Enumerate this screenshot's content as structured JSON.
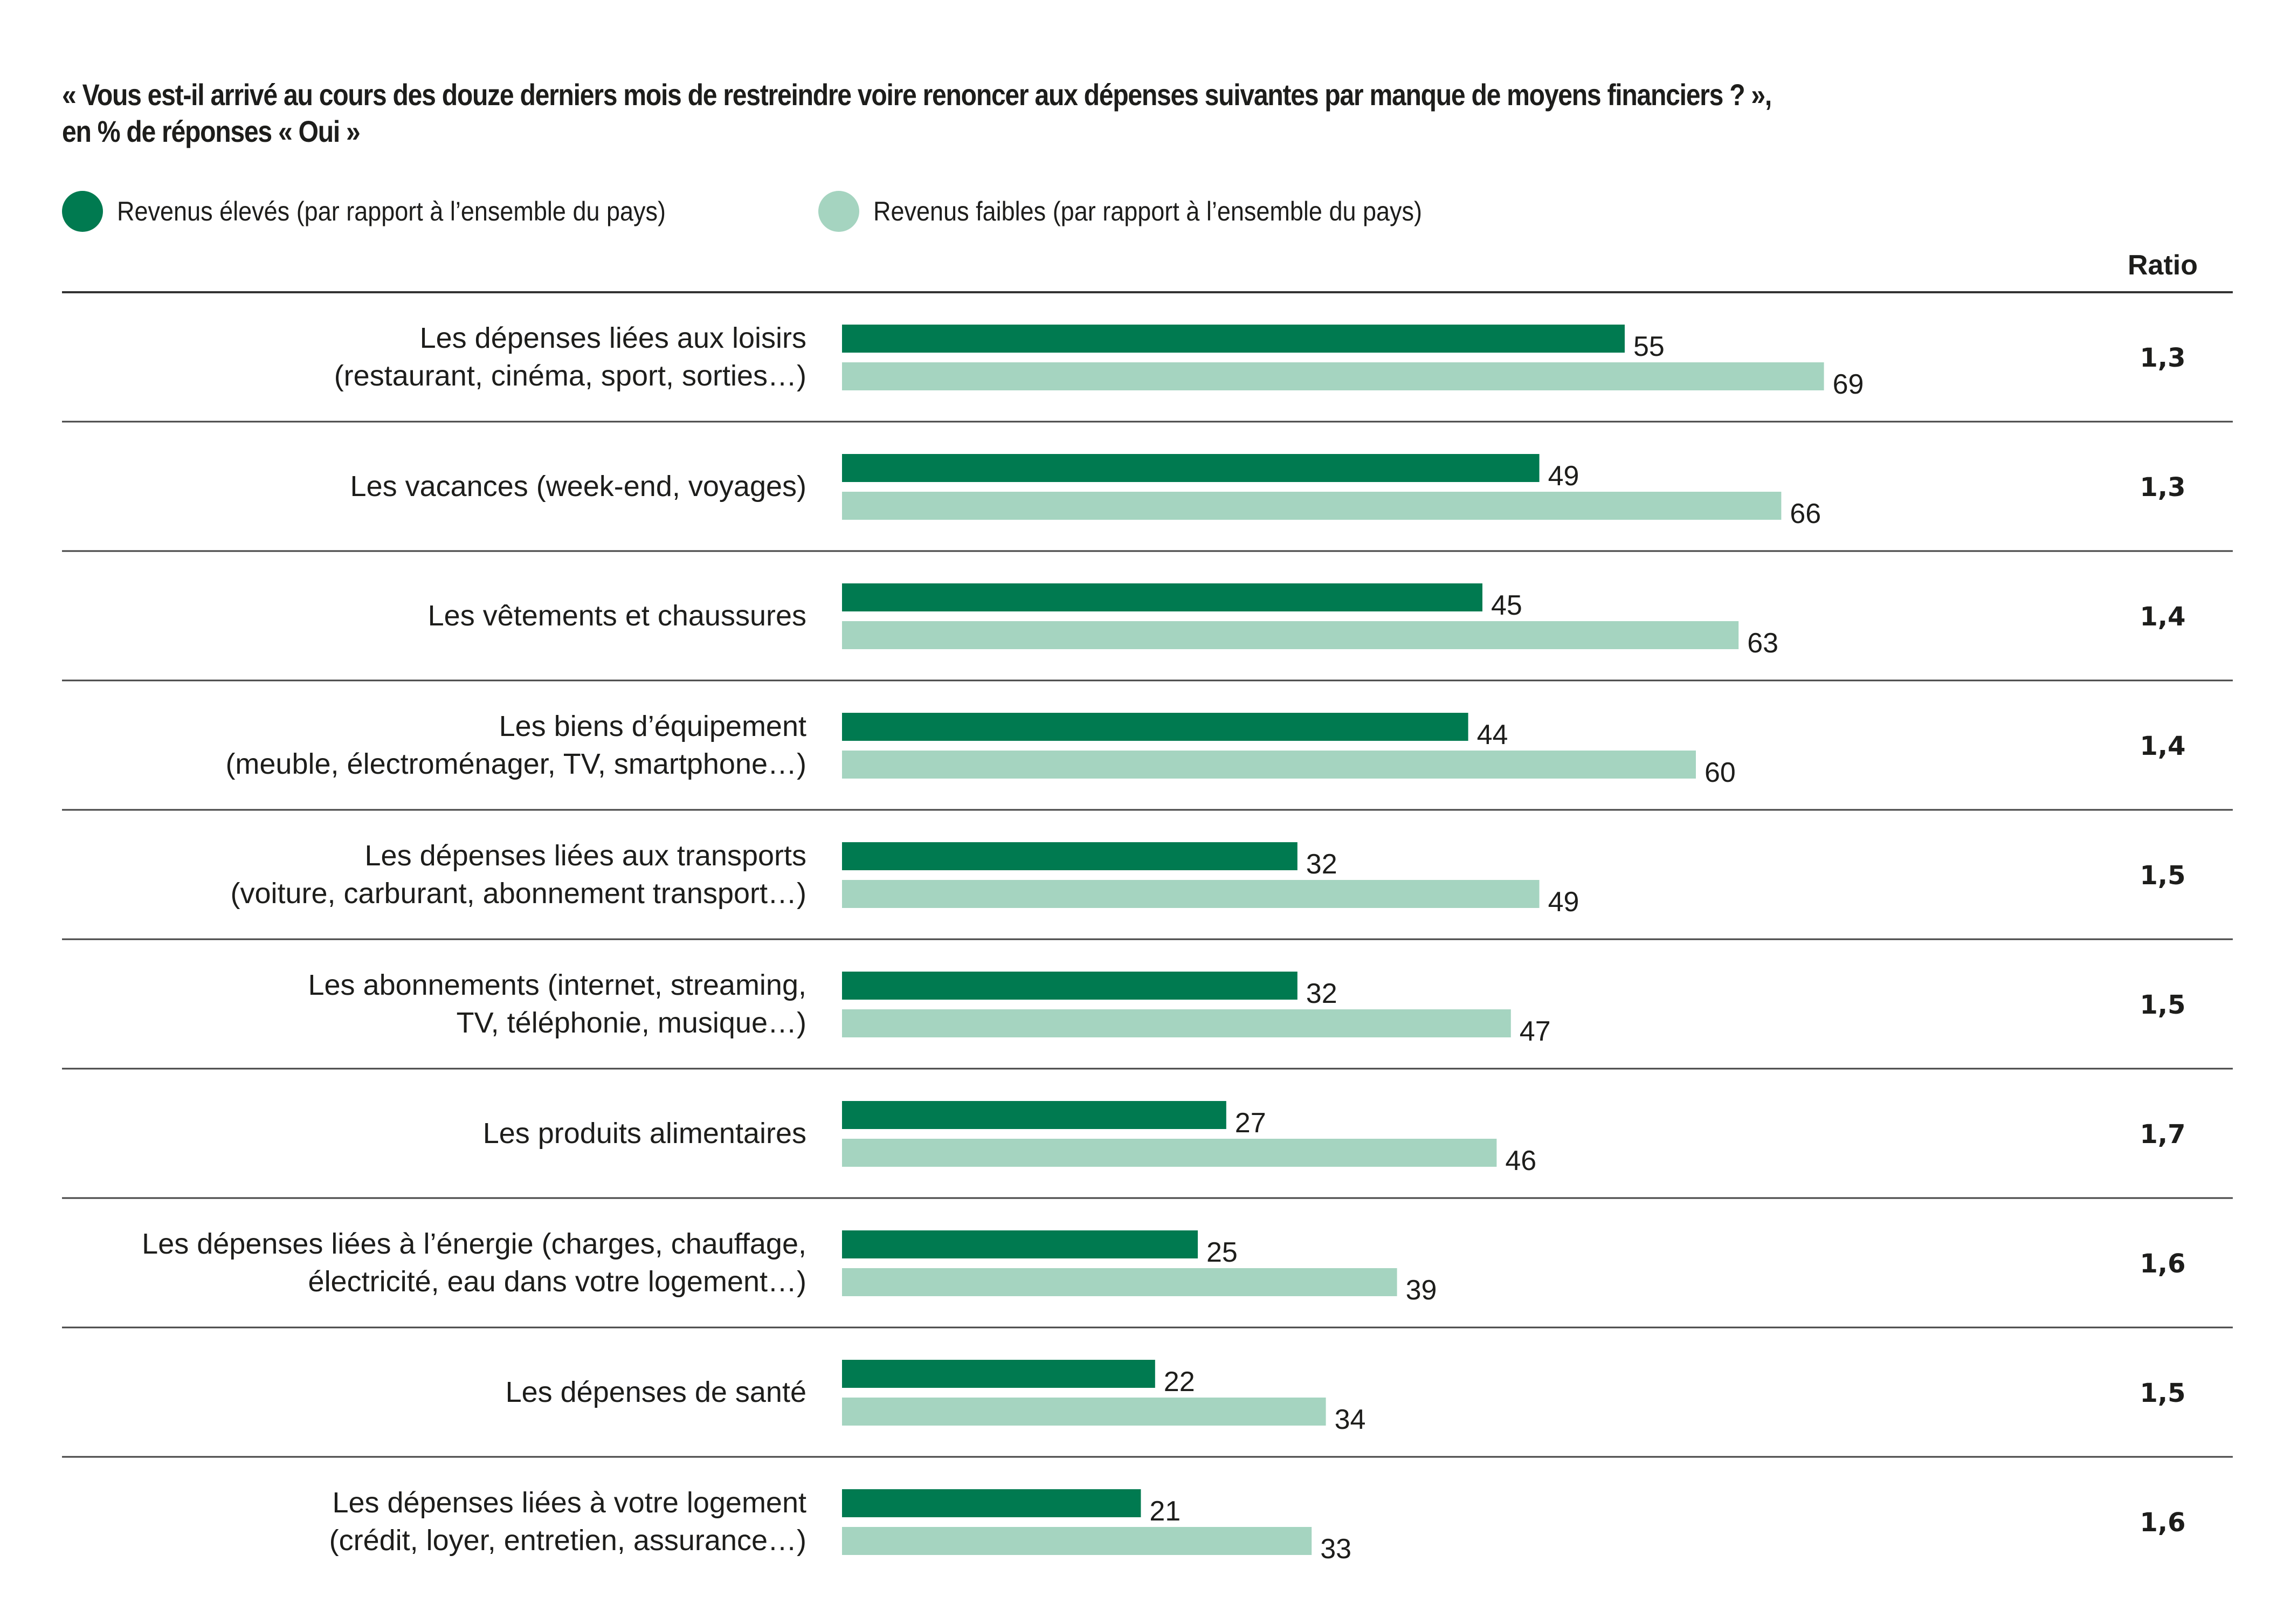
{
  "title": {
    "line1": "« Vous est-il arrivé au cours des douze derniers mois de restreindre voire renoncer aux dépenses suivantes par manque de moyens financiers ? »,",
    "line2": "en % de réponses « Oui »"
  },
  "legend": [
    {
      "label": "Revenus élevés (par rapport à l’ensemble du pays)",
      "color": "#007a50"
    },
    {
      "label": "Revenus faibles (par rapport à l’ensemble du pays)",
      "color": "#a5d4c0"
    }
  ],
  "ratio_header": "Ratio",
  "chart_data": {
    "type": "bar",
    "orientation": "horizontal",
    "title": "« Vous est-il arrivé au cours des douze derniers mois de restreindre voire renoncer aux dépenses suivantes par manque de moyens financiers ? », en % de réponses « Oui »",
    "xlabel": "",
    "ylabel": "",
    "xlim": [
      0,
      69
    ],
    "grid": false,
    "legend_position": "top-left",
    "categories": [
      [
        "Les dépenses liées aux loisirs",
        "(restaurant, cinéma, sport, sorties…)"
      ],
      [
        "Les vacances (week-end, voyages)"
      ],
      [
        "Les vêtements et chaussures"
      ],
      [
        "Les biens d’équipement",
        "(meuble, électroménager, TV, smartphone…)"
      ],
      [
        "Les dépenses liées aux transports",
        "(voiture, carburant, abonnement transport…)"
      ],
      [
        "Les abonnements (internet, streaming,",
        "TV, téléphonie, musique…)"
      ],
      [
        "Les produits alimentaires"
      ],
      [
        "Les dépenses liées à l’énergie (charges, chauffage,",
        "électricité, eau dans votre logement…)"
      ],
      [
        "Les dépenses de santé"
      ],
      [
        "Les dépenses liées à votre logement",
        "(crédit, loyer, entretien, assurance…)"
      ]
    ],
    "series": [
      {
        "name": "Revenus élevés (par rapport à l’ensemble du pays)",
        "color": "#007a50",
        "values": [
          55,
          49,
          45,
          44,
          32,
          32,
          27,
          25,
          22,
          21
        ]
      },
      {
        "name": "Revenus faibles (par rapport à l’ensemble du pays)",
        "color": "#a5d4c0",
        "values": [
          69,
          66,
          63,
          60,
          49,
          47,
          46,
          39,
          34,
          33
        ]
      }
    ],
    "ratio": [
      "1,3",
      "1,3",
      "1,4",
      "1,4",
      "1,5",
      "1,5",
      "1,7",
      "1,6",
      "1,5",
      "1,6"
    ]
  }
}
